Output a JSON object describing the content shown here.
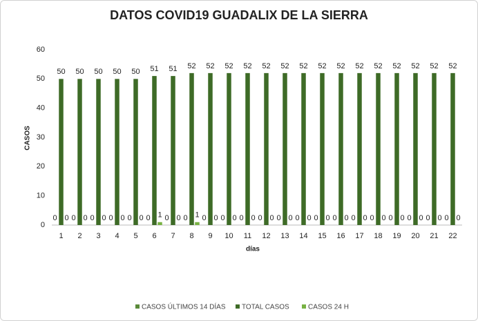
{
  "chart_data": {
    "type": "bar",
    "title": "DATOS COVID19 GUADALIX DE LA SIERRA",
    "x_label": "días",
    "y_label": "CASOS",
    "categories": [
      "1",
      "2",
      "3",
      "4",
      "5",
      "6",
      "7",
      "8",
      "9",
      "10",
      "11",
      "12",
      "13",
      "14",
      "15",
      "16",
      "17",
      "18",
      "19",
      "20",
      "21",
      "22"
    ],
    "series": [
      {
        "name": "CASOS ÚLTIMOS 14 DÍAS",
        "color": "#5a8a3a",
        "values": [
          0,
          0,
          0,
          0,
          0,
          0,
          0,
          0,
          0,
          0,
          0,
          0,
          0,
          0,
          0,
          0,
          0,
          0,
          0,
          0,
          0,
          0
        ]
      },
      {
        "name": "TOTAL CASOS",
        "color": "#3e6b27",
        "values": [
          50,
          50,
          50,
          50,
          50,
          51,
          51,
          52,
          52,
          52,
          52,
          52,
          52,
          52,
          52,
          52,
          52,
          52,
          52,
          52,
          52,
          52
        ]
      },
      {
        "name": "CASOS 24 H",
        "color": "#78b243",
        "values": [
          0,
          0,
          0,
          0,
          0,
          1,
          0,
          1,
          0,
          0,
          0,
          0,
          0,
          0,
          0,
          0,
          0,
          0,
          0,
          0,
          0,
          0
        ]
      }
    ],
    "ylim": [
      0,
      60
    ],
    "yticks": [
      0,
      10,
      20,
      30,
      40,
      50,
      60
    ],
    "grid": false,
    "legend": "bottom"
  }
}
